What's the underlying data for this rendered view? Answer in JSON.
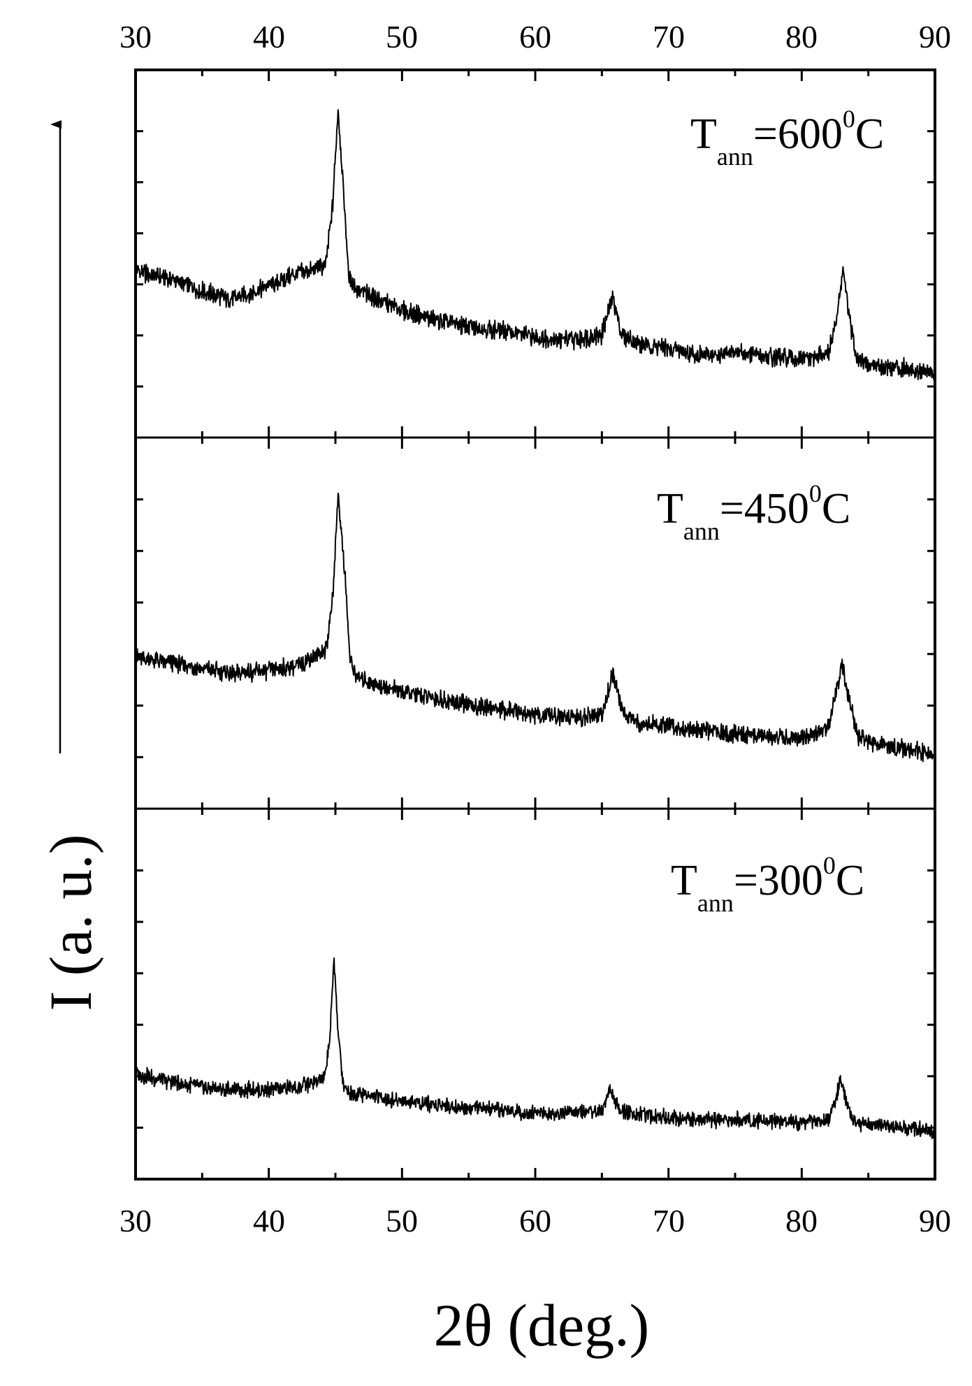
{
  "chart_data": {
    "type": "line",
    "title": "",
    "xlabel": "2θ (deg.)",
    "ylabel": "I (a. u.)",
    "xlim": [
      30,
      90
    ],
    "x_ticks": [
      "30",
      "40",
      "50",
      "60",
      "70",
      "80",
      "90"
    ],
    "y_ticks_labeled": false,
    "grid": false,
    "legend": "none",
    "line_color": "#000000",
    "panels": [
      {
        "annotation": {
          "main": "T",
          "sub": "ann",
          "value": "=600",
          "sup": "0",
          "unit": "C"
        },
        "series": {
          "x": [
            30,
            33,
            35,
            37,
            38,
            40,
            42,
            43.5,
            44.3,
            44.8,
            45.2,
            45.6,
            46,
            46.5,
            48,
            50,
            52,
            55,
            58,
            60,
            63,
            65,
            65.8,
            66.5,
            68,
            70,
            72,
            74,
            75,
            77,
            80,
            82,
            82.6,
            83.1,
            83.6,
            84.2,
            85,
            87,
            90
          ],
          "y": [
            0.4,
            0.37,
            0.33,
            0.3,
            0.31,
            0.35,
            0.39,
            0.41,
            0.43,
            0.65,
            1.0,
            0.7,
            0.38,
            0.34,
            0.3,
            0.26,
            0.23,
            0.2,
            0.18,
            0.16,
            0.15,
            0.17,
            0.31,
            0.17,
            0.13,
            0.12,
            0.1,
            0.09,
            0.11,
            0.09,
            0.08,
            0.1,
            0.22,
            0.41,
            0.22,
            0.08,
            0.06,
            0.05,
            0.03
          ]
        }
      },
      {
        "annotation": {
          "main": "T",
          "sub": "ann",
          "value": "=450",
          "sup": "0",
          "unit": "C"
        },
        "series": {
          "x": [
            30,
            33,
            35,
            37,
            40,
            42,
            43.5,
            44.3,
            44.8,
            45.2,
            45.7,
            46.1,
            46.6,
            48,
            50,
            53,
            55,
            58,
            60,
            63,
            65,
            65.8,
            66.6,
            68,
            70,
            73,
            75,
            78,
            80,
            82,
            82.5,
            83,
            83.6,
            84.2,
            85,
            87,
            90
          ],
          "y": [
            0.37,
            0.35,
            0.33,
            0.31,
            0.32,
            0.34,
            0.38,
            0.4,
            0.6,
            1.0,
            0.7,
            0.36,
            0.3,
            0.27,
            0.24,
            0.21,
            0.19,
            0.17,
            0.15,
            0.14,
            0.15,
            0.31,
            0.16,
            0.12,
            0.11,
            0.09,
            0.08,
            0.07,
            0.06,
            0.1,
            0.22,
            0.35,
            0.2,
            0.07,
            0.05,
            0.03,
            0.0
          ]
        }
      },
      {
        "annotation": {
          "main": "T",
          "sub": "ann",
          "value": "=300",
          "sup": "0",
          "unit": "C"
        },
        "series": {
          "x": [
            30,
            32,
            35,
            37,
            40,
            42,
            43.5,
            44.2,
            44.6,
            44.9,
            45.2,
            45.6,
            46.1,
            48,
            50,
            52,
            55,
            58,
            60,
            63,
            65,
            65.6,
            66.3,
            68,
            70,
            73,
            75,
            78,
            80,
            82,
            82.5,
            82.9,
            83.4,
            84,
            85,
            87,
            90
          ],
          "y": [
            0.23,
            0.2,
            0.17,
            0.16,
            0.16,
            0.17,
            0.19,
            0.21,
            0.4,
            0.73,
            0.4,
            0.18,
            0.15,
            0.13,
            0.11,
            0.1,
            0.08,
            0.07,
            0.06,
            0.06,
            0.07,
            0.16,
            0.07,
            0.05,
            0.04,
            0.03,
            0.03,
            0.02,
            0.02,
            0.03,
            0.1,
            0.2,
            0.09,
            0.02,
            0.01,
            0.0,
            -0.02
          ]
        }
      }
    ]
  }
}
